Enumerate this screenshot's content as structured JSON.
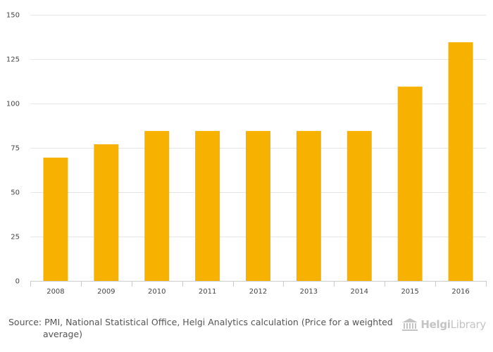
{
  "chart_data": {
    "type": "bar",
    "title": "",
    "xlabel": "",
    "ylabel": "",
    "categories": [
      "2008",
      "2009",
      "2010",
      "2011",
      "2012",
      "2013",
      "2014",
      "2015",
      "2016"
    ],
    "values": [
      69.5,
      77,
      84.5,
      84.5,
      84.5,
      84.5,
      84.5,
      109.5,
      134.5
    ],
    "ylim": [
      0,
      150
    ],
    "yticks": [
      "0",
      "25",
      "50",
      "75",
      "100",
      "125",
      "150"
    ],
    "grid": true,
    "legend": "none",
    "bar_color": "#F7B100",
    "grid_color": "#e6e6e6"
  },
  "footer": {
    "source": "Source: PMI, National Statistical Office, Helgi Analytics calculation (Price for a weighted average)",
    "logo_icon": "library-building-icon",
    "logo_part1": "Helgi",
    "logo_part2": "Library"
  }
}
